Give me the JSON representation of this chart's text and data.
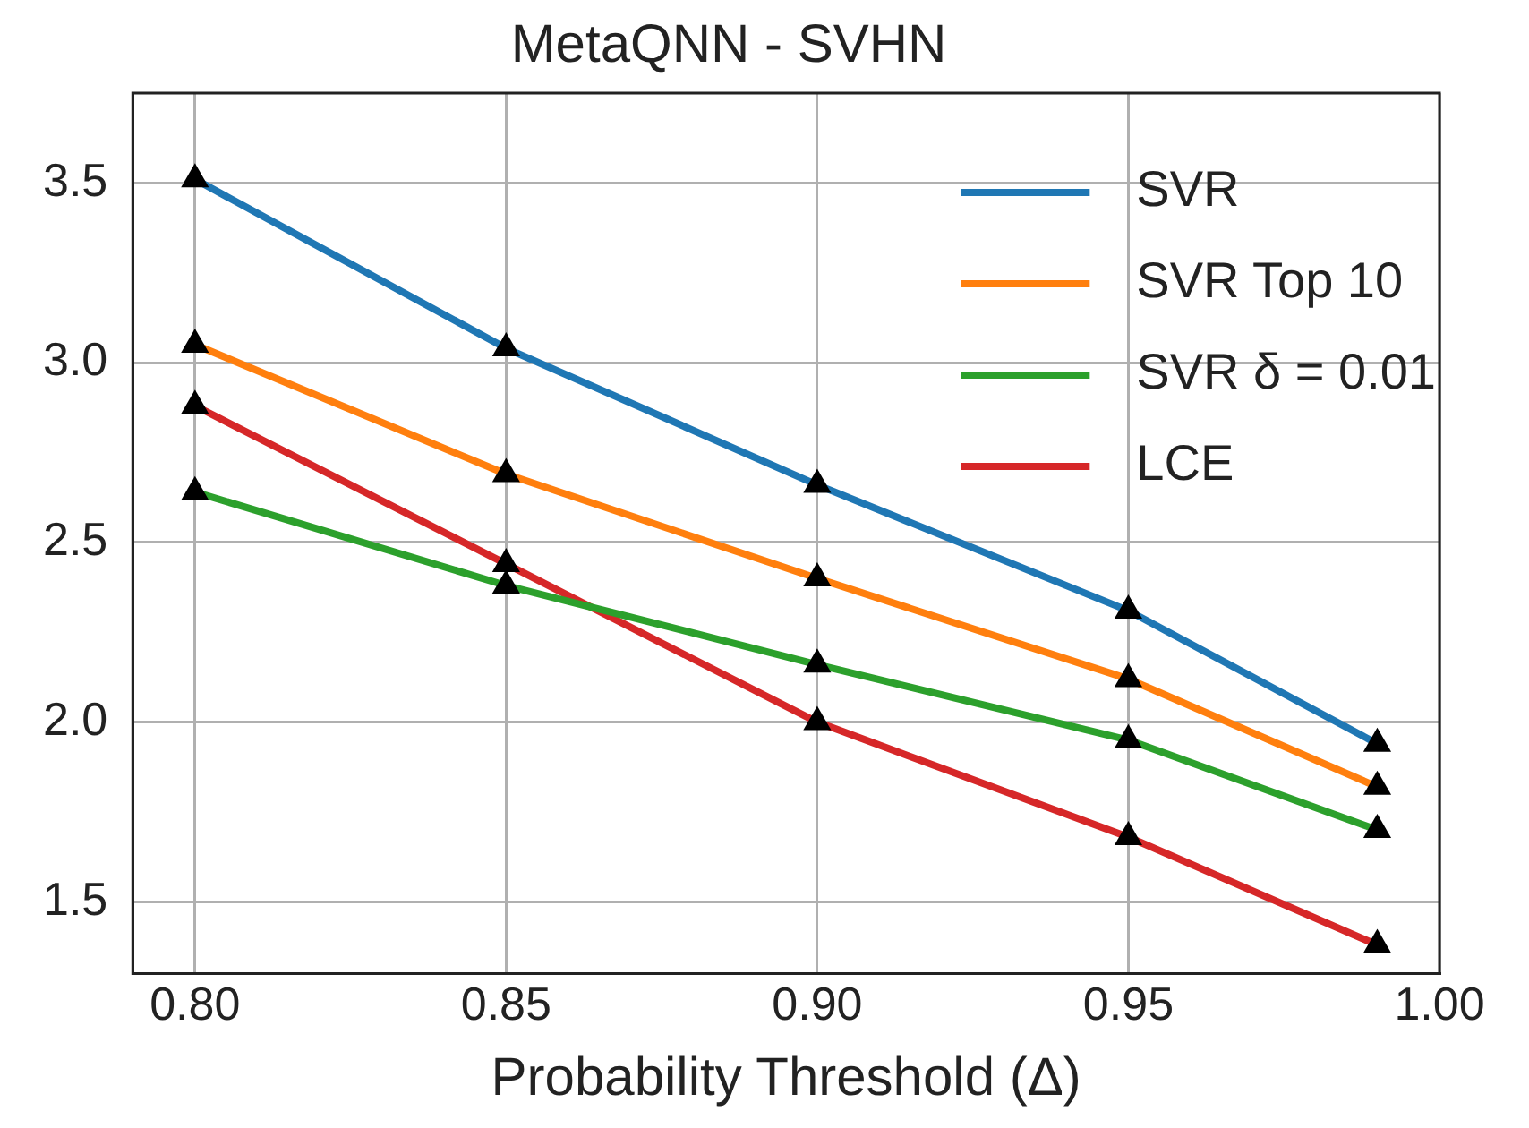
{
  "chart_data": {
    "type": "line",
    "title": "MetaQNN - SVHN",
    "xlabel": "Probability Threshold (Δ)",
    "x": [
      0.8,
      0.85,
      0.9,
      0.95,
      0.99
    ],
    "series": [
      {
        "name": "SVR",
        "color": "#1f77b4",
        "values": [
          3.51,
          3.04,
          2.66,
          2.31,
          1.94
        ]
      },
      {
        "name": "SVR Top 10",
        "color": "#ff7f0e",
        "values": [
          3.05,
          2.69,
          2.4,
          2.12,
          1.82
        ]
      },
      {
        "name": "SVR δ = 0.01",
        "color": "#2ca02c",
        "values": [
          2.64,
          2.38,
          2.16,
          1.95,
          1.7
        ]
      },
      {
        "name": "LCE",
        "color": "#d62728",
        "values": [
          2.88,
          2.44,
          2.0,
          1.68,
          1.38
        ]
      }
    ],
    "xlim": [
      0.79,
      1.0
    ],
    "xticks": [
      {
        "value": 0.8,
        "label": "0.80"
      },
      {
        "value": 0.85,
        "label": "0.85"
      },
      {
        "value": 0.9,
        "label": "0.90"
      },
      {
        "value": 0.95,
        "label": "0.95"
      },
      {
        "value": 1.0,
        "label": "1.00"
      }
    ],
    "ylim": [
      1.3,
      3.75
    ],
    "yticks": [
      1.5,
      {
        "value": 2.0,
        "label": "2.0"
      },
      2.5,
      {
        "value": 3.0,
        "label": "3.0"
      },
      3.5
    ],
    "grid": true,
    "legend": "top right",
    "marker": "triangle",
    "line_style": "solid"
  }
}
